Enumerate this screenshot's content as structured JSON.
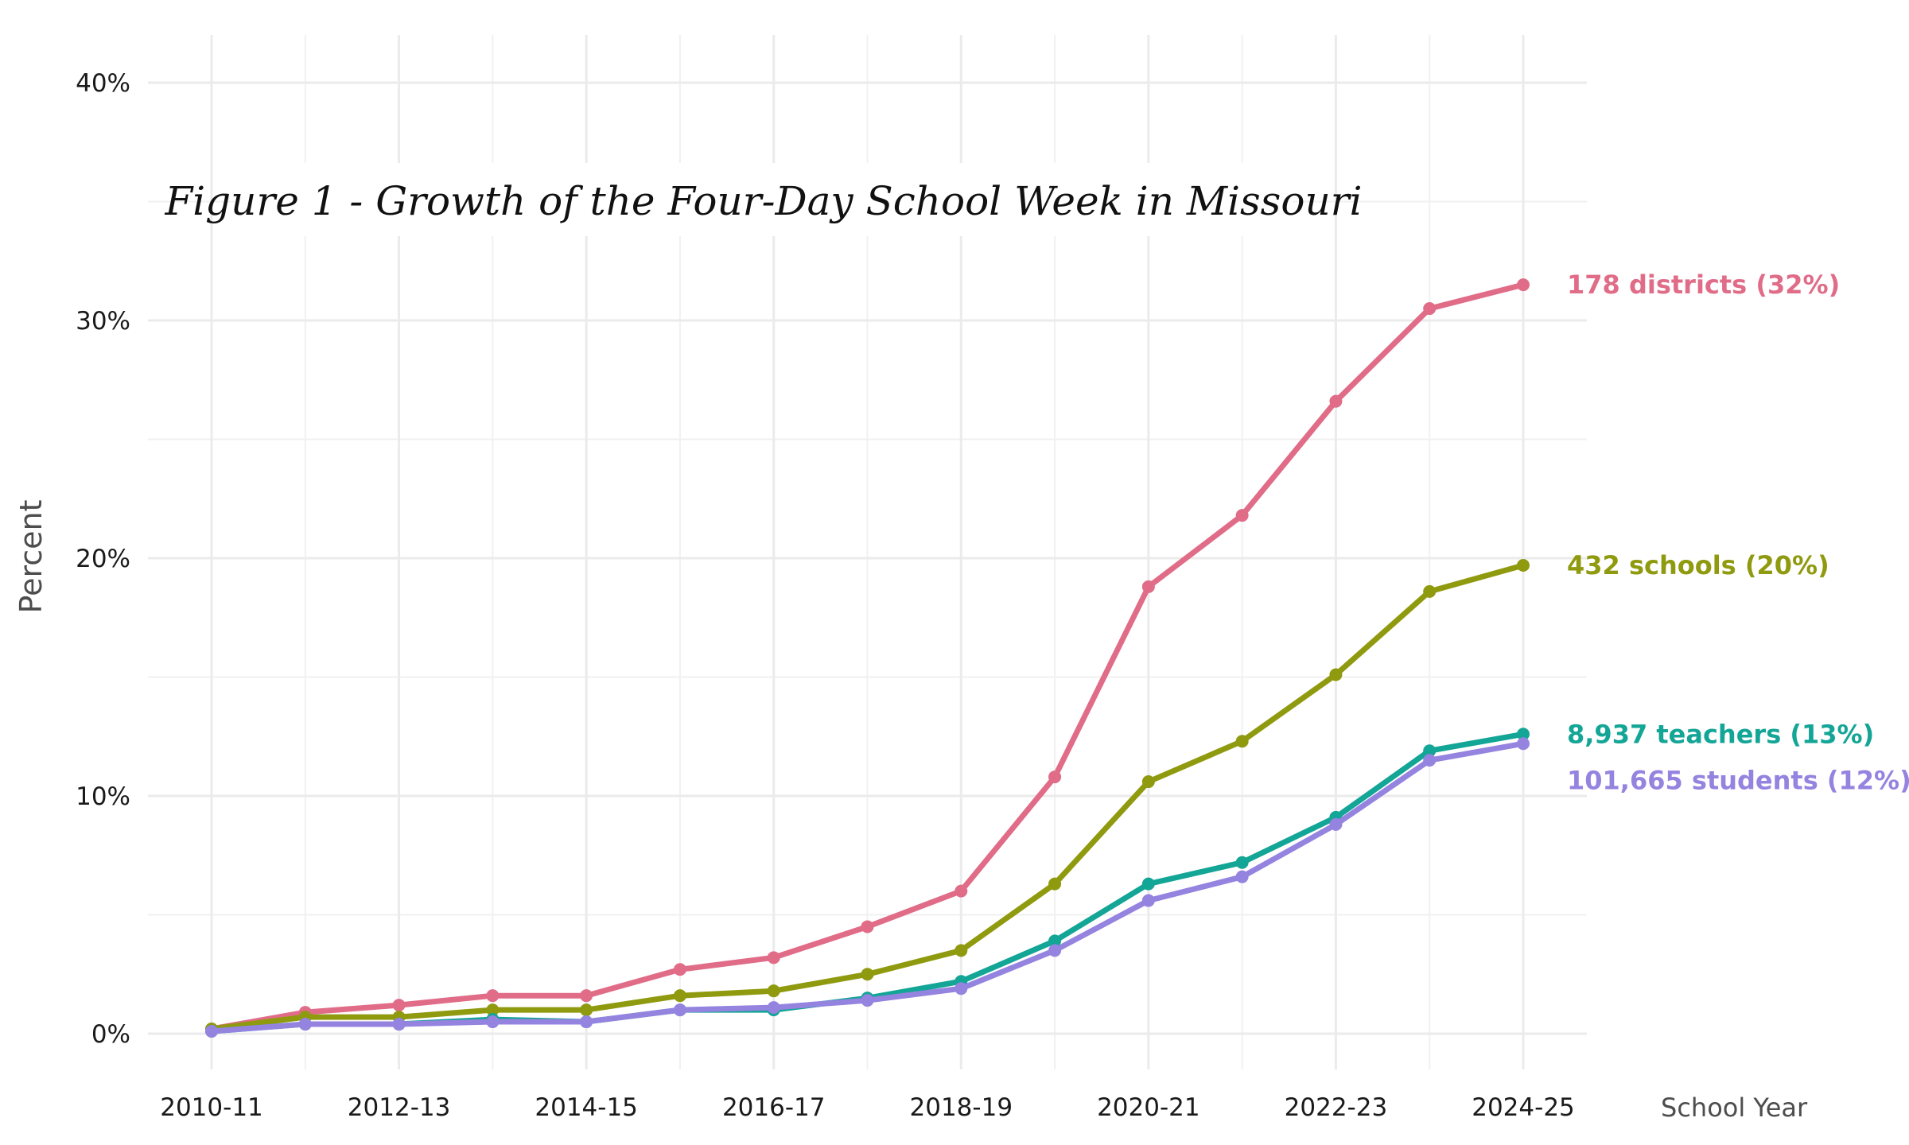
{
  "chart_data": {
    "type": "line",
    "title": "Figure 1 - Growth of the Four-Day School Week in Missouri",
    "xlabel": "School Year",
    "ylabel": "Percent",
    "ylim": [
      0,
      40
    ],
    "y_ticks": [
      "0%",
      "10%",
      "20%",
      "30%",
      "40%"
    ],
    "y_tick_values": [
      0,
      10,
      20,
      30,
      40
    ],
    "categories": [
      "2010-11",
      "2011-12",
      "2012-13",
      "2013-14",
      "2014-15",
      "2015-16",
      "2016-17",
      "2017-18",
      "2018-19",
      "2019-20",
      "2020-21",
      "2021-22",
      "2022-23",
      "2023-24",
      "2024-25"
    ],
    "x_tick_labels": [
      "2010-11",
      "",
      "2012-13",
      "",
      "2014-15",
      "",
      "2016-17",
      "",
      "2018-19",
      "",
      "2020-21",
      "",
      "2022-23",
      "",
      "2024-25"
    ],
    "grid": true,
    "legend": "direct labels at line ends",
    "series": [
      {
        "key": "districts",
        "color": "#e06c88",
        "label": "178 districts (32%)",
        "values": [
          0.2,
          0.9,
          1.2,
          1.6,
          1.6,
          2.7,
          3.2,
          4.5,
          6.0,
          10.8,
          18.8,
          21.8,
          26.6,
          30.5,
          31.5
        ]
      },
      {
        "key": "schools",
        "color": "#8f9a0f",
        "label": "432 schools (20%)",
        "values": [
          0.2,
          0.7,
          0.7,
          1.0,
          1.0,
          1.6,
          1.8,
          2.5,
          3.5,
          6.3,
          10.6,
          12.3,
          15.1,
          18.6,
          19.7
        ]
      },
      {
        "key": "teachers",
        "color": "#13a596",
        "label": "8,937 teachers (13%)",
        "values": [
          0.1,
          0.4,
          0.4,
          0.6,
          0.5,
          1.0,
          1.0,
          1.5,
          2.2,
          3.9,
          6.3,
          7.2,
          9.1,
          11.9,
          12.6
        ]
      },
      {
        "key": "students",
        "color": "#9583e0",
        "label": "101,665 students (12%)",
        "values": [
          0.1,
          0.4,
          0.4,
          0.5,
          0.5,
          1.0,
          1.1,
          1.4,
          1.9,
          3.5,
          5.6,
          6.6,
          8.8,
          11.5,
          12.2
        ]
      }
    ]
  }
}
